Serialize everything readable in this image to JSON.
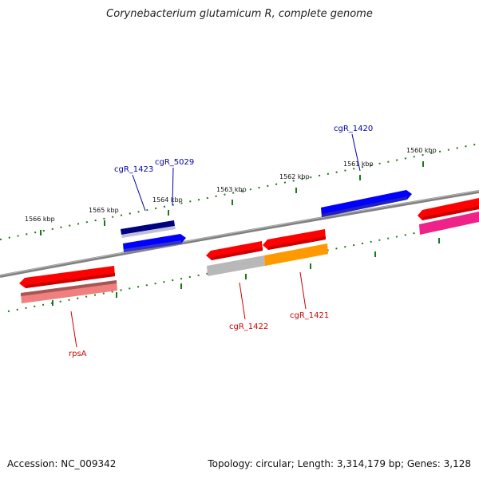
{
  "title": "Corynebacterium glutamicum R, complete genome",
  "footer": {
    "accession": "Accession: NC_009342",
    "summary": "Topology: circular; Length: 3,314,179 bp; Genes: 3,128"
  },
  "scale_ticks": [
    {
      "label": "1566 kbp"
    },
    {
      "label": "1565 kbp"
    },
    {
      "label": "1564 kbp"
    },
    {
      "label": "1563 kbp"
    },
    {
      "label": "1562 kbp"
    },
    {
      "label": "1561 kbp"
    },
    {
      "label": "1560 kbp"
    }
  ],
  "gene_labels": [
    {
      "label": "cgR_1423",
      "color": "#0000aa"
    },
    {
      "label": "cgR_5029",
      "color": "#0000aa"
    },
    {
      "label": "cgR_1420",
      "color": "#0000aa"
    },
    {
      "label": "cgR_1422",
      "color": "#cc0000"
    },
    {
      "label": "cgR_1421",
      "color": "#cc0000"
    },
    {
      "label": "rpsA",
      "color": "#cc0000"
    }
  ],
  "colors": {
    "backbone": "#808080",
    "tick": "#1a7a1a",
    "red": "#ff0000",
    "blue": "#0000ff",
    "navy": "#000080",
    "gray": "#b8b8b8",
    "orange": "#ff9900",
    "pink": "#ee2288",
    "salmon": "#f08080"
  }
}
